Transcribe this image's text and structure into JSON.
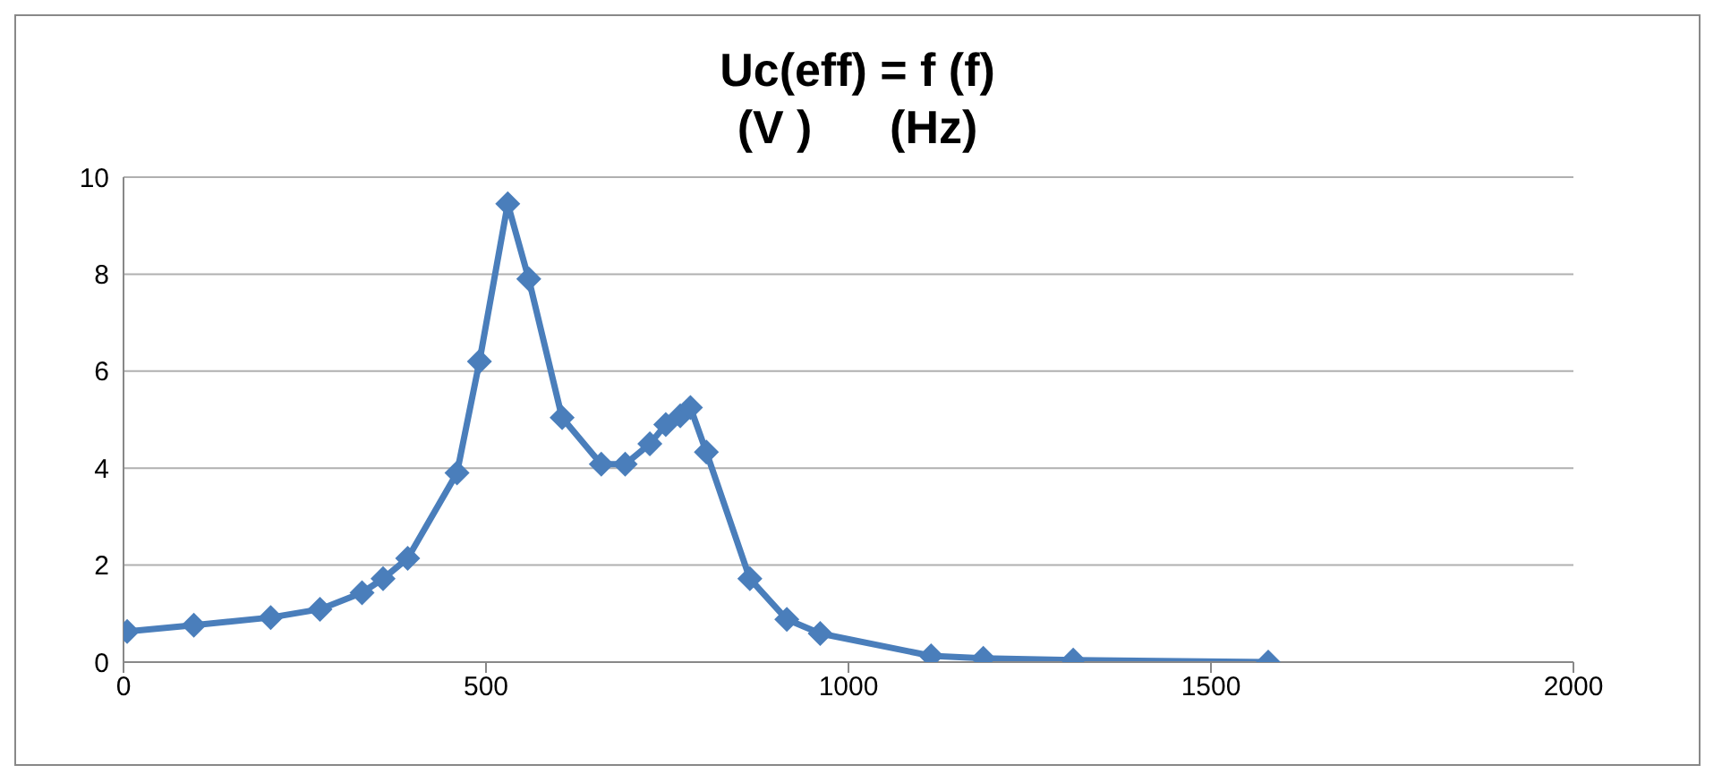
{
  "chart_data": {
    "type": "line",
    "title": "Uc(eff) = f (f)\n(V )      (Hz)",
    "x": [
      5,
      97,
      203,
      271,
      329,
      358,
      392,
      460,
      491,
      530,
      559,
      605,
      659,
      692,
      726,
      748,
      768,
      782,
      804,
      864,
      915,
      961,
      1114,
      1186,
      1310,
      1579
    ],
    "series": [
      {
        "color": "#4a7ebb",
        "values": [
          0.63,
          0.76,
          0.92,
          1.09,
          1.43,
          1.72,
          2.14,
          3.9,
          6.2,
          9.45,
          7.9,
          5.04,
          4.08,
          4.08,
          4.5,
          4.9,
          5.08,
          5.25,
          4.33,
          1.72,
          0.88,
          0.59,
          0.13,
          0.08,
          0.04,
          0.0
        ]
      }
    ],
    "xlim": [
      0,
      2000
    ],
    "xticks": [
      0,
      500,
      1000,
      1500,
      2000
    ],
    "ylim": [
      0,
      10
    ],
    "yticks": [
      0,
      2,
      4,
      6,
      8,
      10
    ],
    "grid": "y",
    "marker": "diamond",
    "line_style": "solid",
    "legend": false
  }
}
